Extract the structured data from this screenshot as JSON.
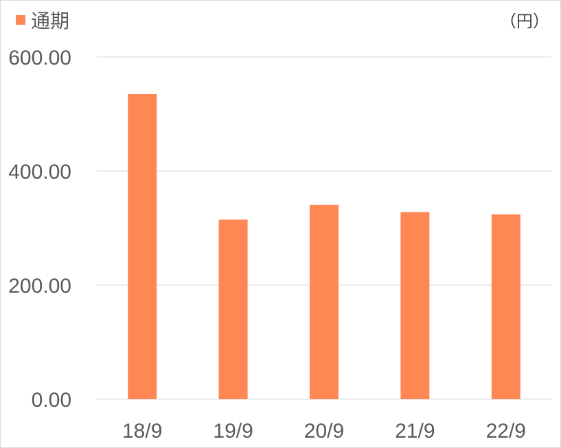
{
  "chart_data": {
    "type": "bar",
    "categories": [
      "18/9",
      "19/9",
      "20/9",
      "21/9",
      "22/9"
    ],
    "series": [
      {
        "name": "通期",
        "values": [
          535,
          315,
          341,
          328,
          324
        ],
        "color": "#FF8754"
      }
    ],
    "unit": "（円）",
    "ylim": [
      0,
      600
    ],
    "yticks": [
      "0.00",
      "200.00",
      "400.00",
      "600.00"
    ],
    "ytick_values": [
      0,
      200,
      400,
      600
    ],
    "grid": true,
    "legend_position": "top-left"
  }
}
